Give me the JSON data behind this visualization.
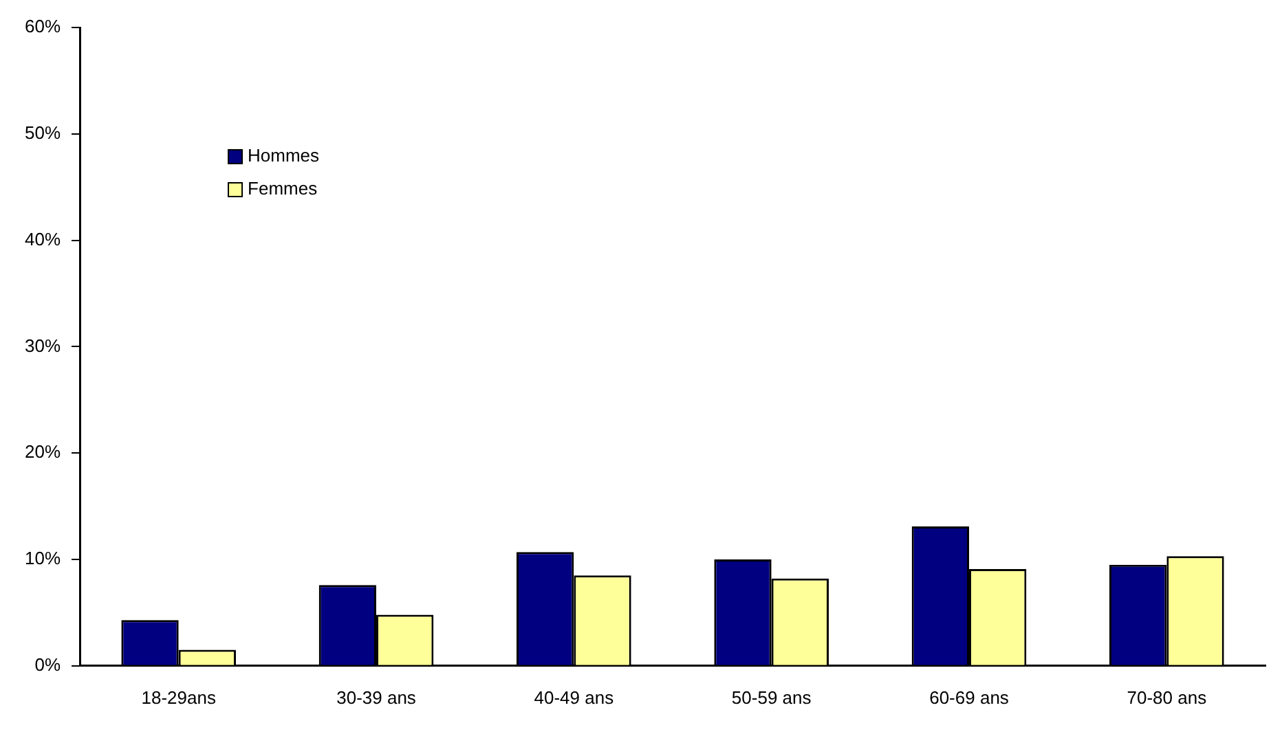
{
  "chart_data": {
    "type": "bar",
    "categories": [
      "18-29ans",
      "30-39 ans",
      "40-49 ans",
      "50-59 ans",
      "60-69 ans",
      "70-80 ans"
    ],
    "series": [
      {
        "name": "Hommes",
        "color": "#000080",
        "values": [
          4.3,
          7.6,
          10.7,
          10.0,
          13.1,
          9.5
        ]
      },
      {
        "name": "Femmes",
        "color": "#ffff99",
        "values": [
          1.5,
          4.8,
          8.5,
          8.2,
          9.1,
          10.3
        ]
      }
    ],
    "ylim": [
      0,
      60
    ],
    "yticks": [
      {
        "value": 0,
        "label": "0%"
      },
      {
        "value": 10,
        "label": "10%"
      },
      {
        "value": 20,
        "label": "20%"
      },
      {
        "value": 30,
        "label": "30%"
      },
      {
        "value": 40,
        "label": "40%"
      },
      {
        "value": 50,
        "label": "50%"
      },
      {
        "value": 60,
        "label": "60%"
      }
    ],
    "grid": false,
    "legend": "top left"
  }
}
